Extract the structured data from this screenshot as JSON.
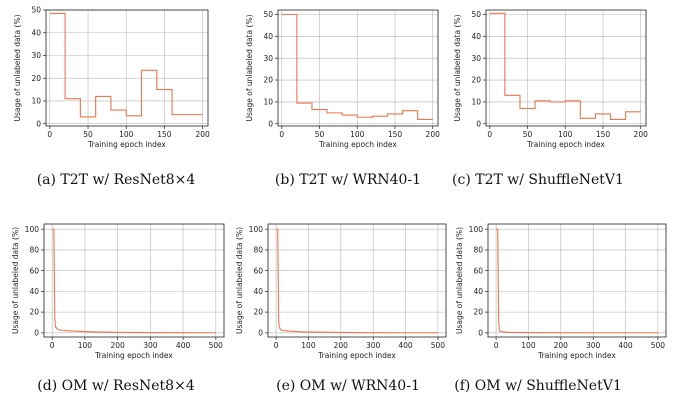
{
  "chart_data": [
    {
      "type": "line",
      "step": true,
      "caption": "(a)  T2T w/ ResNet8×4",
      "xlabel": "Training epoch index",
      "ylabel": "Usage of unlabeled data (%)",
      "xlim": [
        -5,
        207
      ],
      "ylim": [
        -1,
        50
      ],
      "xticks": [
        0,
        50,
        100,
        150,
        200
      ],
      "yticks": [
        0,
        10,
        20,
        30,
        40,
        50
      ],
      "grid": true,
      "color": "#ee7550",
      "series": [
        {
          "x": [
            0,
            20,
            40,
            60,
            80,
            100,
            120,
            140,
            160,
            200
          ],
          "y": [
            48.5,
            11,
            3,
            12,
            6,
            3.5,
            23.5,
            15,
            4,
            4
          ]
        }
      ]
    },
    {
      "type": "line",
      "step": true,
      "caption": "(b)  T2T w/ WRN40-1",
      "xlabel": "Training epoch index",
      "ylabel": "Usage of unlabeled data (%)",
      "xlim": [
        -5,
        207
      ],
      "ylim": [
        -1,
        52
      ],
      "xticks": [
        0,
        50,
        100,
        150,
        200
      ],
      "yticks": [
        0,
        10,
        20,
        30,
        40,
        50
      ],
      "grid": true,
      "color": "#ee7550",
      "series": [
        {
          "x": [
            0,
            20,
            40,
            60,
            80,
            100,
            120,
            140,
            160,
            180,
            200
          ],
          "y": [
            50,
            9.5,
            6.5,
            5,
            4,
            3,
            3.5,
            4.5,
            6,
            2,
            2
          ]
        }
      ]
    },
    {
      "type": "line",
      "step": true,
      "caption": "(c)  T2T w/ ShuffleNetV1",
      "xlabel": "Training epoch index",
      "ylabel": "Usage of unlabeled data (%)",
      "xlim": [
        -5,
        207
      ],
      "ylim": [
        -1,
        52
      ],
      "xticks": [
        0,
        50,
        100,
        150,
        200
      ],
      "yticks": [
        0,
        10,
        20,
        30,
        40,
        50
      ],
      "grid": true,
      "color": "#ee7550",
      "series": [
        {
          "x": [
            0,
            20,
            40,
            60,
            80,
            100,
            120,
            140,
            160,
            180,
            200
          ],
          "y": [
            50.5,
            13,
            7,
            10.5,
            10,
            10.5,
            2.5,
            4.5,
            2,
            5.5,
            5.5
          ]
        }
      ]
    },
    {
      "type": "line",
      "caption": "(d)  OM w/ ResNet8×4",
      "xlabel": "Training epoch index",
      "ylabel": "Usage of unlabeled data (%)",
      "xlim": [
        -25,
        525
      ],
      "ylim": [
        -4,
        105
      ],
      "xticks": [
        0,
        100,
        200,
        300,
        400,
        500
      ],
      "yticks": [
        0,
        20,
        40,
        60,
        80,
        100
      ],
      "grid": true,
      "color": "#ee7550",
      "series": [
        {
          "x": [
            0,
            5,
            8,
            10,
            15,
            20,
            30,
            50,
            80,
            120,
            200,
            300,
            400,
            500
          ],
          "y": [
            100,
            100,
            15,
            6,
            4,
            3,
            2.5,
            2,
            1.5,
            1,
            0.5,
            0.3,
            0.2,
            0.1
          ]
        }
      ]
    },
    {
      "type": "line",
      "caption": "(e)  OM w/ WRN40-1",
      "xlabel": "Training epoch index",
      "ylabel": "Usage of unlabeled data (%)",
      "xlim": [
        -25,
        525
      ],
      "ylim": [
        -4,
        105
      ],
      "xticks": [
        0,
        100,
        200,
        300,
        400,
        500
      ],
      "yticks": [
        0,
        20,
        40,
        60,
        80,
        100
      ],
      "grid": true,
      "color": "#ee7550",
      "series": [
        {
          "x": [
            0,
            5,
            8,
            10,
            15,
            20,
            30,
            50,
            80,
            120,
            200,
            300,
            400,
            500
          ],
          "y": [
            100,
            100,
            12,
            5,
            3,
            2.5,
            2,
            1.5,
            1,
            0.8,
            0.4,
            0.2,
            0.1,
            0.1
          ]
        }
      ]
    },
    {
      "type": "line",
      "caption": "(f)  OM w/ ShuffleNetV1",
      "xlabel": "Training epoch index",
      "ylabel": "Usage of unlabeled data (%)",
      "xlim": [
        -25,
        525
      ],
      "ylim": [
        -4,
        105
      ],
      "xticks": [
        0,
        100,
        200,
        300,
        400,
        500
      ],
      "yticks": [
        0,
        20,
        40,
        60,
        80,
        100
      ],
      "grid": true,
      "color": "#ee7550",
      "series": [
        {
          "x": [
            0,
            5,
            8,
            10,
            12,
            20,
            40,
            100,
            200,
            300,
            400,
            500
          ],
          "y": [
            100,
            100,
            10,
            3,
            1.5,
            1,
            0.5,
            0.3,
            0.2,
            0.1,
            0.1,
            0.1
          ]
        }
      ]
    }
  ]
}
